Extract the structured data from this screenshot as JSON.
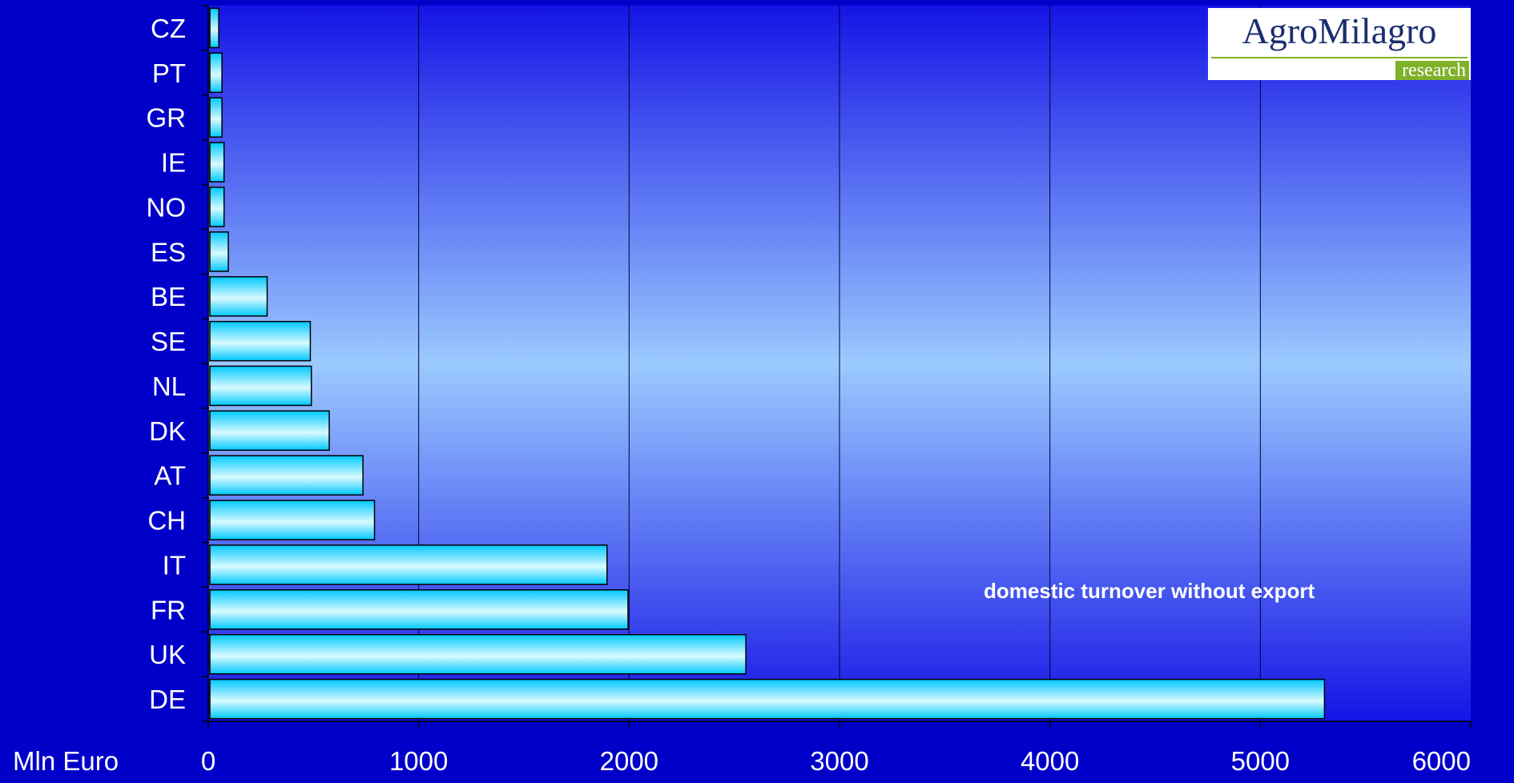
{
  "chart_data": {
    "type": "bar",
    "orientation": "horizontal",
    "categories": [
      "CZ",
      "PT",
      "GR",
      "IE",
      "NO",
      "ES",
      "BE",
      "SE",
      "NL",
      "DK",
      "AT",
      "CH",
      "IT",
      "FR",
      "UK",
      "DE"
    ],
    "values": [
      50,
      65,
      65,
      75,
      75,
      95,
      280,
      485,
      490,
      575,
      735,
      790,
      1895,
      1995,
      2555,
      5305
    ],
    "xlabel": "Mln Euro",
    "xlim": [
      0,
      6000
    ],
    "xticks": [
      "0",
      "1000",
      "2000",
      "3000",
      "4000",
      "5000",
      "6000"
    ],
    "grid": "vertical",
    "annotation": "domestic turnover without export",
    "colors": {
      "page_background": "#0000c8",
      "bar_edge": "#00c8ff",
      "bar_center": "#d8faff",
      "plot_top": "#1414e6",
      "plot_middle": "#9bcaff",
      "text": "#ffffff"
    }
  },
  "logo": {
    "name": "AgroMilagro",
    "tagline": "research"
  }
}
